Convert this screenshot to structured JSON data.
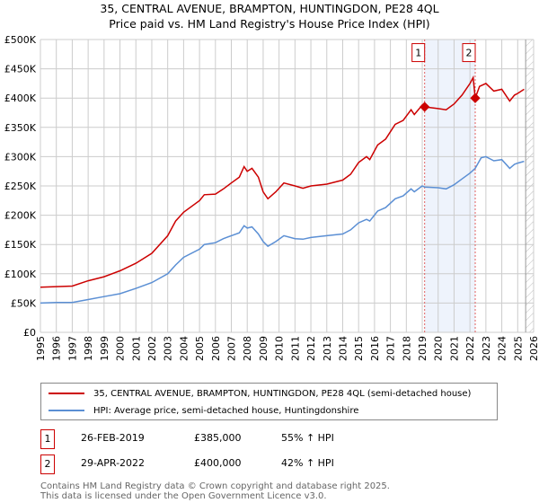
{
  "title_line1": "35, CENTRAL AVENUE, BRAMPTON, HUNTINGDON, PE28 4QL",
  "title_line2": "Price paid vs. HM Land Registry's House Price Index (HPI)",
  "colors": {
    "property": "#cc0000",
    "hpi": "#5b8fd4",
    "shade": "#eef3fc"
  },
  "chart_data": {
    "type": "line",
    "title": "Price paid vs. HM Land Registry's House Price Index (HPI)",
    "xlim": [
      1995,
      2026
    ],
    "ylim": [
      0,
      500000
    ],
    "x_ticks": [
      "1995",
      "1996",
      "1997",
      "1998",
      "1999",
      "2000",
      "2001",
      "2002",
      "2003",
      "2004",
      "2005",
      "2006",
      "2007",
      "2008",
      "2009",
      "2010",
      "2011",
      "2012",
      "2013",
      "2014",
      "2015",
      "2016",
      "2017",
      "2018",
      "2019",
      "2020",
      "2021",
      "2022",
      "2023",
      "2024",
      "2025",
      "2026"
    ],
    "y_ticks": [
      {
        "v": 0,
        "label": "£0"
      },
      {
        "v": 50000,
        "label": "£50K"
      },
      {
        "v": 100000,
        "label": "£100K"
      },
      {
        "v": 150000,
        "label": "£150K"
      },
      {
        "v": 200000,
        "label": "£200K"
      },
      {
        "v": 250000,
        "label": "£250K"
      },
      {
        "v": 300000,
        "label": "£300K"
      },
      {
        "v": 350000,
        "label": "£350K"
      },
      {
        "v": 400000,
        "label": "£400K"
      },
      {
        "v": 450000,
        "label": "£450K"
      },
      {
        "v": 500000,
        "label": "£500K"
      }
    ],
    "grid": true,
    "shaded_range": [
      2019.15,
      2022.33
    ],
    "future_hatch_from": 2025.5,
    "series": [
      {
        "name": "35, CENTRAL AVENUE, BRAMPTON, HUNTINGDON, PE28 4QL (semi-detached house)",
        "color": "#cc0000",
        "x": [
          1995,
          1996,
          1997,
          1998,
          1999,
          2000,
          2001,
          2002,
          2003,
          2003.5,
          2004,
          2005,
          2005.3,
          2006,
          2006.5,
          2007,
          2007.5,
          2007.8,
          2008,
          2008.3,
          2008.7,
          2009,
          2009.3,
          2009.8,
          2010.3,
          2011,
          2011.5,
          2012,
          2013,
          2014,
          2014.5,
          2015,
          2015.5,
          2015.7,
          2016.2,
          2016.7,
          2017.3,
          2017.8,
          2018.3,
          2018.5,
          2019,
          2019.15,
          2020,
          2020.5,
          2021,
          2021.5,
          2022,
          2022.2,
          2022.33,
          2022.6,
          2023,
          2023.5,
          2024,
          2024.5,
          2024.8,
          2025,
          2025.4
        ],
        "y": [
          77,
          78,
          79,
          88,
          95,
          105,
          118,
          135,
          165,
          190,
          205,
          225,
          235,
          236,
          245,
          255,
          265,
          283,
          275,
          280,
          265,
          240,
          228,
          240,
          255,
          250,
          246,
          250,
          253,
          260,
          270,
          290,
          300,
          295,
          320,
          330,
          355,
          362,
          380,
          372,
          388,
          385,
          382,
          380,
          390,
          405,
          425,
          435,
          400,
          420,
          425,
          412,
          415,
          395,
          405,
          408,
          415
        ]
      },
      {
        "name": "HPI: Average price, semi-detached house, Huntingdonshire",
        "color": "#5b8fd4",
        "x": [
          1995,
          1996,
          1997,
          1998,
          1999,
          2000,
          2001,
          2002,
          2003,
          2003.5,
          2004,
          2005,
          2005.3,
          2006,
          2006.5,
          2007,
          2007.5,
          2007.8,
          2008,
          2008.3,
          2008.7,
          2009,
          2009.3,
          2009.8,
          2010.3,
          2011,
          2011.5,
          2012,
          2013,
          2014,
          2014.5,
          2015,
          2015.5,
          2015.7,
          2016.2,
          2016.7,
          2017.3,
          2017.8,
          2018.3,
          2018.5,
          2019,
          2019.15,
          2020,
          2020.5,
          2021,
          2021.5,
          2022,
          2022.33,
          2022.7,
          2023,
          2023.5,
          2024,
          2024.5,
          2024.8,
          2025,
          2025.4
        ],
        "y": [
          50,
          51,
          51,
          56,
          61,
          66,
          75,
          85,
          100,
          115,
          128,
          142,
          150,
          153,
          160,
          165,
          170,
          182,
          178,
          180,
          168,
          155,
          147,
          155,
          165,
          160,
          159,
          162,
          165,
          168,
          175,
          187,
          193,
          190,
          207,
          213,
          228,
          233,
          245,
          240,
          250,
          248,
          247,
          245,
          252,
          262,
          272,
          280,
          298,
          300,
          293,
          295,
          280,
          287,
          289,
          292
        ]
      }
    ],
    "y_units_note": "series y values in £ thousands",
    "annotations": [
      {
        "label": "1",
        "x": 2019.15,
        "y": 385000
      },
      {
        "label": "2",
        "x": 2022.33,
        "y": 400000
      }
    ]
  },
  "legend": {
    "property": "35, CENTRAL AVENUE, BRAMPTON, HUNTINGDON, PE28 4QL (semi-detached house)",
    "hpi": "HPI: Average price, semi-detached house, Huntingdonshire"
  },
  "transactions": [
    {
      "num": "1",
      "date": "26-FEB-2019",
      "price": "£385,000",
      "hpi": "55% ↑ HPI"
    },
    {
      "num": "2",
      "date": "29-APR-2022",
      "price": "£400,000",
      "hpi": "42% ↑ HPI"
    }
  ],
  "footer": {
    "line1": "Contains HM Land Registry data © Crown copyright and database right 2025.",
    "line2": "This data is licensed under the Open Government Licence v3.0."
  }
}
